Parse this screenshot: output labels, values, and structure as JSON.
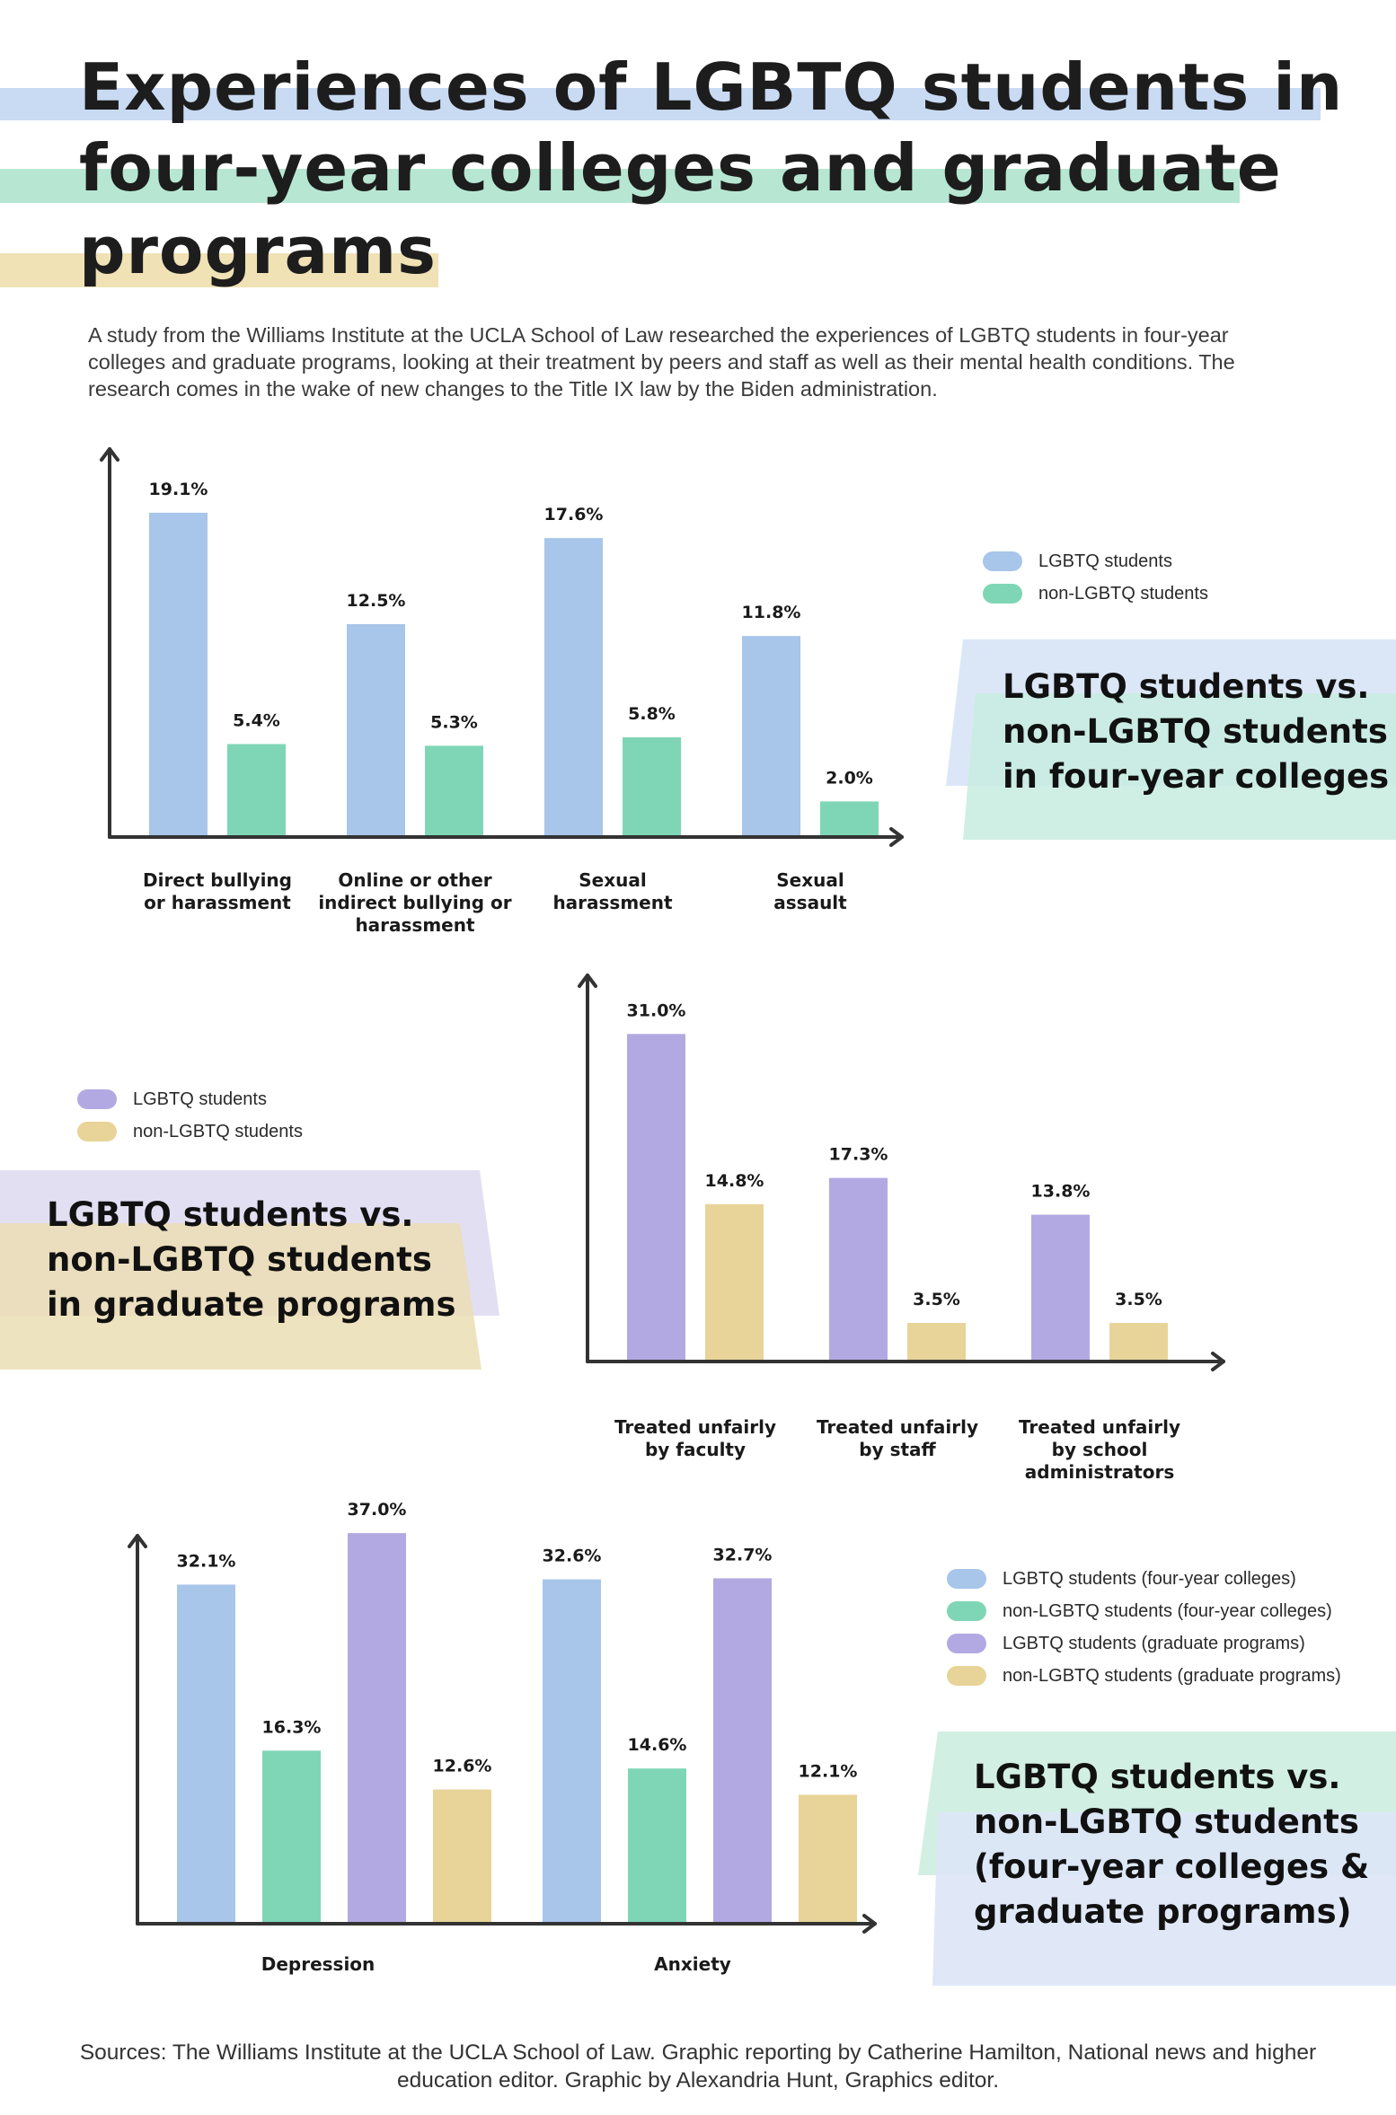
{
  "title_lines": [
    "Experiences of LGBTQ students in",
    "four-year colleges and graduate",
    "programs"
  ],
  "intro": "A study from the Williams Institute at the UCLA School of Law researched the experiences of LGBTQ students in four-year colleges and graduate programs, looking at their treatment by peers and staff as well as their mental health conditions. The research comes in the wake of new changes to the Title IX law by the Biden administration.",
  "colors": {
    "lgbtq_college": "#a8c5ea",
    "non_lgbtq_college": "#7fd6b6",
    "lgbtq_grad": "#b3a9e2",
    "non_lgbtq_grad": "#e8d498",
    "axis": "#333333"
  },
  "chart_data": [
    {
      "id": "chart1",
      "type": "bar",
      "title": "LGBTQ students vs. non-LGBTQ students in four-year colleges",
      "title_lines": [
        "LGBTQ students vs.",
        "non-LGBTQ students",
        "in four-year colleges"
      ],
      "categories": [
        "Direct bullying or harassment",
        "Online or other indirect bullying or harassment",
        "Sexual harassment",
        "Sexual assault"
      ],
      "category_lines": [
        [
          "Direct bullying",
          "or harassment"
        ],
        [
          "Online or other",
          "indirect bullying or",
          "harassment"
        ],
        [
          "Sexual",
          "harassment"
        ],
        [
          "Sexual",
          "assault"
        ]
      ],
      "series": [
        {
          "name": "LGBTQ students",
          "values": [
            19.1,
            12.5,
            17.6,
            11.8
          ],
          "labels": [
            "19.1%",
            "12.5%",
            "17.6%",
            "11.8%"
          ],
          "color": "#a8c5ea"
        },
        {
          "name": "non-LGBTQ students",
          "values": [
            5.4,
            5.3,
            5.8,
            2.0
          ],
          "labels": [
            "5.4%",
            "5.3%",
            "5.8%",
            "2.0%"
          ],
          "color": "#7fd6b6"
        }
      ],
      "unit": "%"
    },
    {
      "id": "chart2",
      "type": "bar",
      "title": "LGBTQ students vs. non-LGBTQ students in graduate programs",
      "title_lines": [
        "LGBTQ students vs.",
        "non-LGBTQ students",
        "in graduate programs"
      ],
      "categories": [
        "Treated unfairly by faculty",
        "Treated unfairly by staff",
        "Treated unfairly by school administrators"
      ],
      "category_lines": [
        [
          "Treated unfairly",
          "by faculty"
        ],
        [
          "Treated unfairly",
          "by staff"
        ],
        [
          "Treated unfairly",
          "by school",
          "administrators"
        ]
      ],
      "series": [
        {
          "name": "LGBTQ students",
          "values": [
            31.0,
            17.3,
            13.8
          ],
          "labels": [
            "31.0%",
            "17.3%",
            "13.8%"
          ],
          "color": "#b3a9e2"
        },
        {
          "name": "non-LGBTQ students",
          "values": [
            14.8,
            3.5,
            3.5
          ],
          "labels": [
            "14.8%",
            "3.5%",
            "3.5%"
          ],
          "color": "#e8d498"
        }
      ],
      "unit": "%"
    },
    {
      "id": "chart3",
      "type": "bar",
      "title": "LGBTQ students vs. non-LGBTQ students (four-year colleges & graduate programs)",
      "title_lines": [
        "LGBTQ students vs.",
        "non-LGBTQ students",
        "(four-year colleges &",
        "graduate programs)"
      ],
      "categories": [
        "Depression",
        "Anxiety"
      ],
      "category_lines": [
        [
          "Depression"
        ],
        [
          "Anxiety"
        ]
      ],
      "series": [
        {
          "name": "LGBTQ students (four-year colleges)",
          "values": [
            32.1,
            32.6
          ],
          "labels": [
            "32.1%",
            "32.6%"
          ],
          "color": "#a8c5ea"
        },
        {
          "name": "non-LGBTQ students (four-year colleges)",
          "values": [
            16.3,
            14.6
          ],
          "labels": [
            "16.3%",
            "14.6%"
          ],
          "color": "#7fd6b6"
        },
        {
          "name": "LGBTQ students (graduate programs)",
          "values": [
            37.0,
            32.7
          ],
          "labels": [
            "37.0%",
            "32.7%"
          ],
          "color": "#b3a9e2"
        },
        {
          "name": "non-LGBTQ students (graduate programs)",
          "values": [
            12.6,
            12.1
          ],
          "labels": [
            "12.6%",
            "12.1%"
          ],
          "color": "#e8d498"
        }
      ],
      "unit": "%"
    }
  ],
  "footer": "Sources: The Williams Institute at the UCLA School of Law. Graphic reporting by Catherine Hamilton, National news and higher education editor. Graphic by Alexandria Hunt, Graphics editor."
}
